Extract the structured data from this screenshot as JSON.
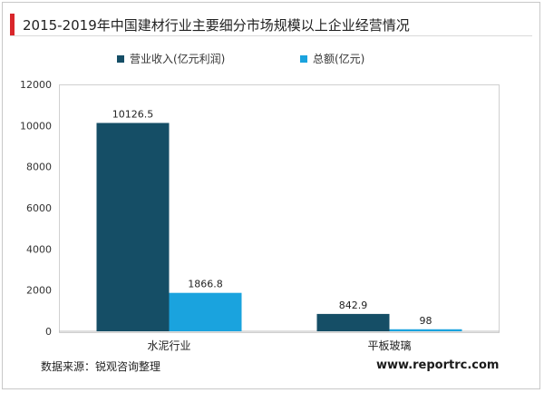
{
  "title": "2015-2019年中国建材行业主要细分市场规模以上企业经营情况",
  "source": "数据来源：锐观咨询整理",
  "website": "www.reportrc.com",
  "colors": {
    "accent": "#d9262b",
    "series1": "#154e66",
    "series2": "#1aa3de"
  },
  "chart_data": {
    "type": "bar",
    "categories": [
      "水泥行业",
      "平板玻璃"
    ],
    "series": [
      {
        "name": "营业收入(亿元利润)",
        "values": [
          10126.5,
          842.9
        ],
        "labels": [
          "10126.5",
          "842.9"
        ],
        "color": "#154e66"
      },
      {
        "name": "总额(亿元)",
        "values": [
          1866.8,
          98
        ],
        "labels": [
          "1866.8",
          "98"
        ],
        "color": "#1aa3de"
      }
    ],
    "ylim": [
      0,
      12000
    ],
    "yticks": [
      0,
      2000,
      4000,
      6000,
      8000,
      10000,
      12000
    ],
    "legend_position": "top",
    "grid": false
  }
}
